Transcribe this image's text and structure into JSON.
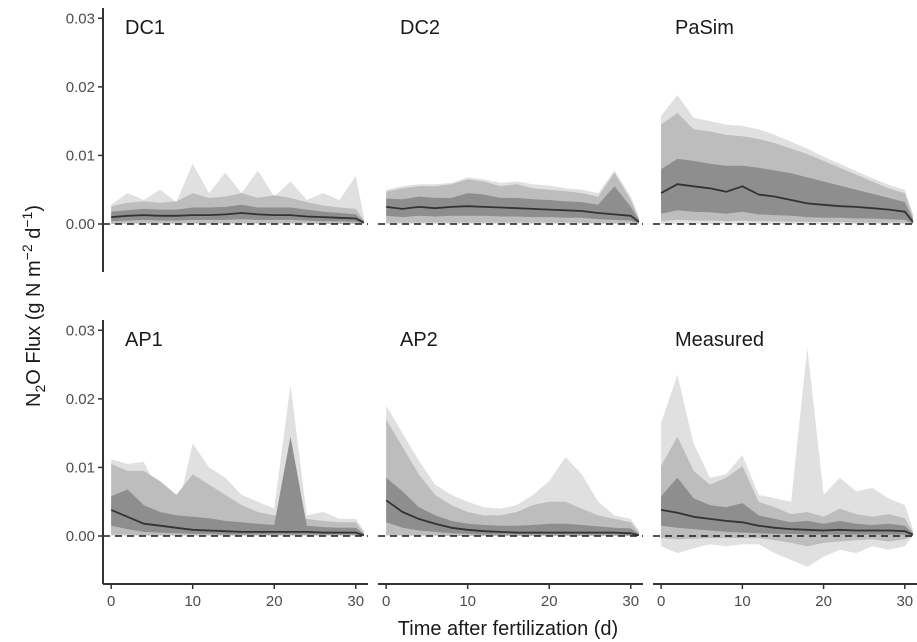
{
  "chart_data": {
    "type": "area",
    "ylabel_parts": {
      "main": "N",
      "sub": "2",
      "rest": "O Flux (g N m",
      "sup1": "−2",
      "mid": " d",
      "sup2": "−1",
      "end": ")"
    },
    "xlabel": "Time after fertilization (d)",
    "xlim": [
      -1,
      31.5
    ],
    "ylim": [
      -0.007,
      0.0315
    ],
    "x_ticks": [
      0,
      10,
      20,
      30
    ],
    "x_tick_labels": [
      "0",
      "10",
      "20",
      "30"
    ],
    "y_ticks": [
      0.0,
      0.01,
      0.02,
      0.03
    ],
    "y_tick_labels": [
      "0.00",
      "0.01",
      "0.02",
      "0.03"
    ],
    "grid": false,
    "colors": {
      "outer_band": "#e0e0e0",
      "middle_band": "#bdbdbd",
      "inner_band": "#8e8e8e",
      "median": "#333333",
      "zero_line": "#1a1a1a"
    },
    "x": [
      0,
      2,
      4,
      6,
      8,
      10,
      12,
      14,
      16,
      18,
      20,
      22,
      24,
      26,
      28,
      30,
      31
    ],
    "panels": [
      {
        "title": "DC1",
        "median": [
          0.001,
          0.0012,
          0.0013,
          0.0012,
          0.0012,
          0.0013,
          0.0013,
          0.0014,
          0.0016,
          0.0014,
          0.0013,
          0.0013,
          0.0011,
          0.001,
          0.0009,
          0.0008,
          0.0002
        ],
        "inner": [
          [
            0.0004,
            0.0005,
            0.0006,
            0.0005,
            0.0005,
            0.0006,
            0.0006,
            0.0006,
            0.0007,
            0.0006,
            0.0006,
            0.0006,
            0.0005,
            0.0004,
            0.0004,
            0.0003,
            0.0001
          ],
          [
            0.0018,
            0.002,
            0.0022,
            0.0021,
            0.0021,
            0.0024,
            0.0024,
            0.0025,
            0.0028,
            0.0024,
            0.0024,
            0.0024,
            0.0021,
            0.0018,
            0.0016,
            0.0014,
            0.0004
          ]
        ],
        "middle": [
          [
            0.0,
            0.0001,
            0.0001,
            0.0001,
            0.0001,
            0.0001,
            0.0001,
            0.0001,
            0.0001,
            0.0001,
            0.0001,
            0.0001,
            0.0001,
            0.0,
            0.0,
            0.0,
            0.0
          ],
          [
            0.0026,
            0.0031,
            0.0033,
            0.0031,
            0.0033,
            0.0045,
            0.0038,
            0.004,
            0.0045,
            0.0038,
            0.0042,
            0.0038,
            0.0032,
            0.0027,
            0.0024,
            0.0022,
            0.0006
          ]
        ],
        "outer": [
          [
            0.0,
            0.0,
            0.0,
            0.0,
            0.0,
            0.0,
            0.0,
            0.0,
            0.0,
            0.0,
            0.0,
            0.0,
            0.0,
            0.0,
            0.0,
            0.0,
            0.0
          ],
          [
            0.0028,
            0.0045,
            0.0035,
            0.005,
            0.0032,
            0.0088,
            0.0045,
            0.0075,
            0.0045,
            0.0078,
            0.004,
            0.0062,
            0.0035,
            0.0045,
            0.0035,
            0.007,
            0.001
          ]
        ]
      },
      {
        "title": "DC2",
        "median": [
          0.0025,
          0.0022,
          0.0025,
          0.0023,
          0.0025,
          0.0026,
          0.0025,
          0.0024,
          0.0023,
          0.0022,
          0.0021,
          0.002,
          0.0019,
          0.0016,
          0.0014,
          0.0012,
          0.0003
        ],
        "inner": [
          [
            0.0012,
            0.001,
            0.0012,
            0.0011,
            0.0012,
            0.0012,
            0.0012,
            0.0011,
            0.0011,
            0.001,
            0.001,
            0.0009,
            0.0009,
            0.0007,
            0.0006,
            0.0005,
            0.0001
          ],
          [
            0.0037,
            0.0036,
            0.004,
            0.0038,
            0.0038,
            0.0045,
            0.0043,
            0.0038,
            0.0038,
            0.0036,
            0.0035,
            0.0033,
            0.0032,
            0.0028,
            0.0055,
            0.0025,
            0.0006
          ]
        ],
        "middle": [
          [
            0.0002,
            0.0002,
            0.0002,
            0.0002,
            0.0002,
            0.0002,
            0.0002,
            0.0002,
            0.0002,
            0.0002,
            0.0002,
            0.0002,
            0.0002,
            0.0001,
            0.0001,
            0.0001,
            0.0
          ],
          [
            0.0047,
            0.0052,
            0.0055,
            0.0055,
            0.0058,
            0.0065,
            0.0062,
            0.0055,
            0.0058,
            0.0052,
            0.005,
            0.0048,
            0.0045,
            0.004,
            0.0075,
            0.0035,
            0.0008
          ]
        ],
        "outer": [
          [
            0.0,
            0.0,
            0.0,
            0.0,
            0.0,
            0.0,
            0.0,
            0.0,
            0.0,
            0.0,
            0.0,
            0.0,
            0.0,
            0.0,
            0.0,
            0.0,
            0.0
          ],
          [
            0.005,
            0.0055,
            0.0058,
            0.0058,
            0.006,
            0.0068,
            0.0065,
            0.006,
            0.0062,
            0.0058,
            0.0056,
            0.0052,
            0.005,
            0.0045,
            0.0078,
            0.004,
            0.001
          ]
        ]
      },
      {
        "title": "PaSim",
        "median": [
          0.0045,
          0.0058,
          0.0055,
          0.0052,
          0.0047,
          0.0055,
          0.0043,
          0.004,
          0.0035,
          0.003,
          0.0028,
          0.0026,
          0.0025,
          0.0023,
          0.0021,
          0.0018,
          0.0003
        ],
        "inner": [
          [
            0.0015,
            0.002,
            0.0018,
            0.0017,
            0.0015,
            0.0018,
            0.0014,
            0.0013,
            0.0012,
            0.001,
            0.0009,
            0.0009,
            0.0008,
            0.0008,
            0.0007,
            0.0006,
            0.0001
          ],
          [
            0.008,
            0.0095,
            0.0092,
            0.0088,
            0.0085,
            0.0085,
            0.0082,
            0.0078,
            0.0074,
            0.0068,
            0.0062,
            0.0056,
            0.005,
            0.0044,
            0.0038,
            0.0032,
            0.0008
          ]
        ],
        "middle": [
          [
            0.0004,
            0.0006,
            0.0005,
            0.0005,
            0.0004,
            0.0005,
            0.0004,
            0.0004,
            0.0003,
            0.0003,
            0.0003,
            0.0003,
            0.0002,
            0.0002,
            0.0002,
            0.0002,
            0.0
          ],
          [
            0.0145,
            0.0162,
            0.0138,
            0.0135,
            0.013,
            0.0128,
            0.0124,
            0.0118,
            0.011,
            0.0102,
            0.0092,
            0.0082,
            0.0072,
            0.0062,
            0.0052,
            0.0045,
            0.0012
          ]
        ],
        "outer": [
          [
            0.0,
            0.0,
            0.0,
            0.0,
            0.0,
            0.0,
            0.0,
            0.0,
            0.0,
            0.0,
            0.0,
            0.0,
            0.0,
            0.0,
            0.0,
            0.0,
            0.0
          ],
          [
            0.0158,
            0.0188,
            0.0155,
            0.015,
            0.0145,
            0.0143,
            0.0138,
            0.013,
            0.012,
            0.011,
            0.0098,
            0.0088,
            0.0077,
            0.0067,
            0.0057,
            0.005,
            0.0015
          ]
        ]
      },
      {
        "title": "AP1",
        "median": [
          0.0038,
          0.0028,
          0.0018,
          0.0015,
          0.0012,
          0.0009,
          0.0008,
          0.0007,
          0.0006,
          0.0006,
          0.0006,
          0.0006,
          0.0006,
          0.0005,
          0.0005,
          0.0005,
          0.0001
        ],
        "inner": [
          [
            0.0015,
            0.001,
            0.0006,
            0.0005,
            0.0004,
            0.0003,
            0.0003,
            0.0002,
            0.0002,
            0.0002,
            0.0002,
            0.0002,
            0.0002,
            0.0002,
            0.0002,
            0.0002,
            0.0
          ],
          [
            0.0058,
            0.0068,
            0.0045,
            0.0035,
            0.003,
            0.0028,
            0.0026,
            0.0022,
            0.002,
            0.0018,
            0.0016,
            0.0145,
            0.0015,
            0.0013,
            0.0012,
            0.0012,
            0.0003
          ]
        ],
        "middle": [
          [
            0.0002,
            0.0002,
            0.0001,
            0.0001,
            0.0001,
            0.0001,
            0.0001,
            0.0001,
            0.0001,
            0.0001,
            0.0001,
            0.0001,
            0.0001,
            0.0001,
            0.0001,
            0.0001,
            0.0
          ],
          [
            0.0105,
            0.0095,
            0.0095,
            0.008,
            0.006,
            0.009,
            0.0075,
            0.006,
            0.0045,
            0.0035,
            0.003,
            0.0028,
            0.0025,
            0.0022,
            0.002,
            0.002,
            0.0005
          ]
        ],
        "outer": [
          [
            0.0,
            0.0,
            0.0,
            0.0,
            0.0,
            0.0,
            0.0,
            0.0,
            0.0,
            0.0,
            0.0,
            0.0,
            0.0,
            0.0,
            0.0,
            0.0,
            0.0
          ],
          [
            0.0112,
            0.0105,
            0.0108,
            0.006,
            0.003,
            0.0135,
            0.01,
            0.0085,
            0.006,
            0.005,
            0.004,
            0.022,
            0.003,
            0.0035,
            0.0025,
            0.0025,
            0.0008
          ]
        ]
      },
      {
        "title": "AP2",
        "median": [
          0.0052,
          0.0035,
          0.0025,
          0.0018,
          0.0012,
          0.0009,
          0.0007,
          0.0006,
          0.0005,
          0.0005,
          0.0005,
          0.0005,
          0.0005,
          0.0005,
          0.0005,
          0.0004,
          0.0001
        ],
        "inner": [
          [
            0.002,
            0.0012,
            0.0008,
            0.0006,
            0.0004,
            0.0003,
            0.0002,
            0.0002,
            0.0002,
            0.0002,
            0.0002,
            0.0002,
            0.0002,
            0.0002,
            0.0002,
            0.0001,
            0.0
          ],
          [
            0.0085,
            0.0065,
            0.0042,
            0.003,
            0.0022,
            0.0018,
            0.0016,
            0.0015,
            0.0015,
            0.0016,
            0.0018,
            0.0018,
            0.0016,
            0.0014,
            0.0012,
            0.0011,
            0.0003
          ]
        ],
        "middle": [
          [
            0.0002,
            0.0001,
            0.0001,
            0.0001,
            0.0,
            0.0,
            0.0,
            0.0,
            0.0,
            0.0,
            0.0,
            0.0,
            0.0,
            0.0,
            0.0,
            0.0,
            0.0
          ],
          [
            0.017,
            0.013,
            0.009,
            0.006,
            0.0045,
            0.0035,
            0.003,
            0.003,
            0.0035,
            0.0045,
            0.005,
            0.005,
            0.004,
            0.003,
            0.0025,
            0.002,
            0.0005
          ]
        ],
        "outer": [
          [
            0.0,
            0.0,
            0.0,
            0.0,
            0.0,
            0.0,
            0.0,
            0.0,
            0.0,
            0.0,
            0.0,
            0.0,
            0.0,
            0.0,
            0.0,
            0.0,
            0.0
          ],
          [
            0.019,
            0.015,
            0.011,
            0.0075,
            0.006,
            0.005,
            0.0042,
            0.004,
            0.0045,
            0.006,
            0.008,
            0.0115,
            0.009,
            0.005,
            0.003,
            0.0025,
            0.0008
          ]
        ]
      },
      {
        "title": "Measured",
        "median": [
          0.0038,
          0.0034,
          0.0028,
          0.0025,
          0.0022,
          0.002,
          0.0015,
          0.0012,
          0.001,
          0.0009,
          0.0008,
          0.0009,
          0.0008,
          0.0008,
          0.0008,
          0.0007,
          0.0002
        ],
        "inner": [
          [
            0.0015,
            0.0012,
            0.001,
            0.0008,
            0.0006,
            0.0005,
            0.0004,
            0.0003,
            0.0003,
            0.0002,
            0.0002,
            0.0002,
            0.0002,
            0.0002,
            0.0002,
            0.0002,
            0.0
          ],
          [
            0.0058,
            0.0085,
            0.0055,
            0.0045,
            0.0042,
            0.0048,
            0.003,
            0.0025,
            0.002,
            0.0022,
            0.0018,
            0.0022,
            0.0018,
            0.0016,
            0.0018,
            0.0015,
            0.0004
          ]
        ],
        "middle": [
          [
            -0.0003,
            -0.0005,
            -0.0004,
            -0.0003,
            -0.0003,
            -0.0003,
            -0.0003,
            -0.0006,
            -0.001,
            -0.0015,
            -0.001,
            -0.0008,
            -0.0006,
            -0.0005,
            -0.0008,
            -0.0005,
            0.0
          ],
          [
            0.0102,
            0.0145,
            0.0095,
            0.0075,
            0.0085,
            0.0102,
            0.005,
            0.0042,
            0.0032,
            0.0035,
            0.0028,
            0.004,
            0.0032,
            0.0028,
            0.0032,
            0.0026,
            0.0006
          ]
        ],
        "outer": [
          [
            -0.0015,
            -0.0025,
            -0.0018,
            -0.0012,
            -0.0015,
            -0.0012,
            -0.0012,
            -0.0025,
            -0.0035,
            -0.0045,
            -0.003,
            -0.002,
            -0.0025,
            -0.0015,
            -0.002,
            -0.0015,
            0.0
          ],
          [
            0.0165,
            0.0235,
            0.0135,
            0.0085,
            0.009,
            0.0118,
            0.006,
            0.0055,
            0.005,
            0.0275,
            0.006,
            0.0085,
            0.0065,
            0.007,
            0.0055,
            0.0045,
            0.001
          ]
        ]
      }
    ]
  }
}
